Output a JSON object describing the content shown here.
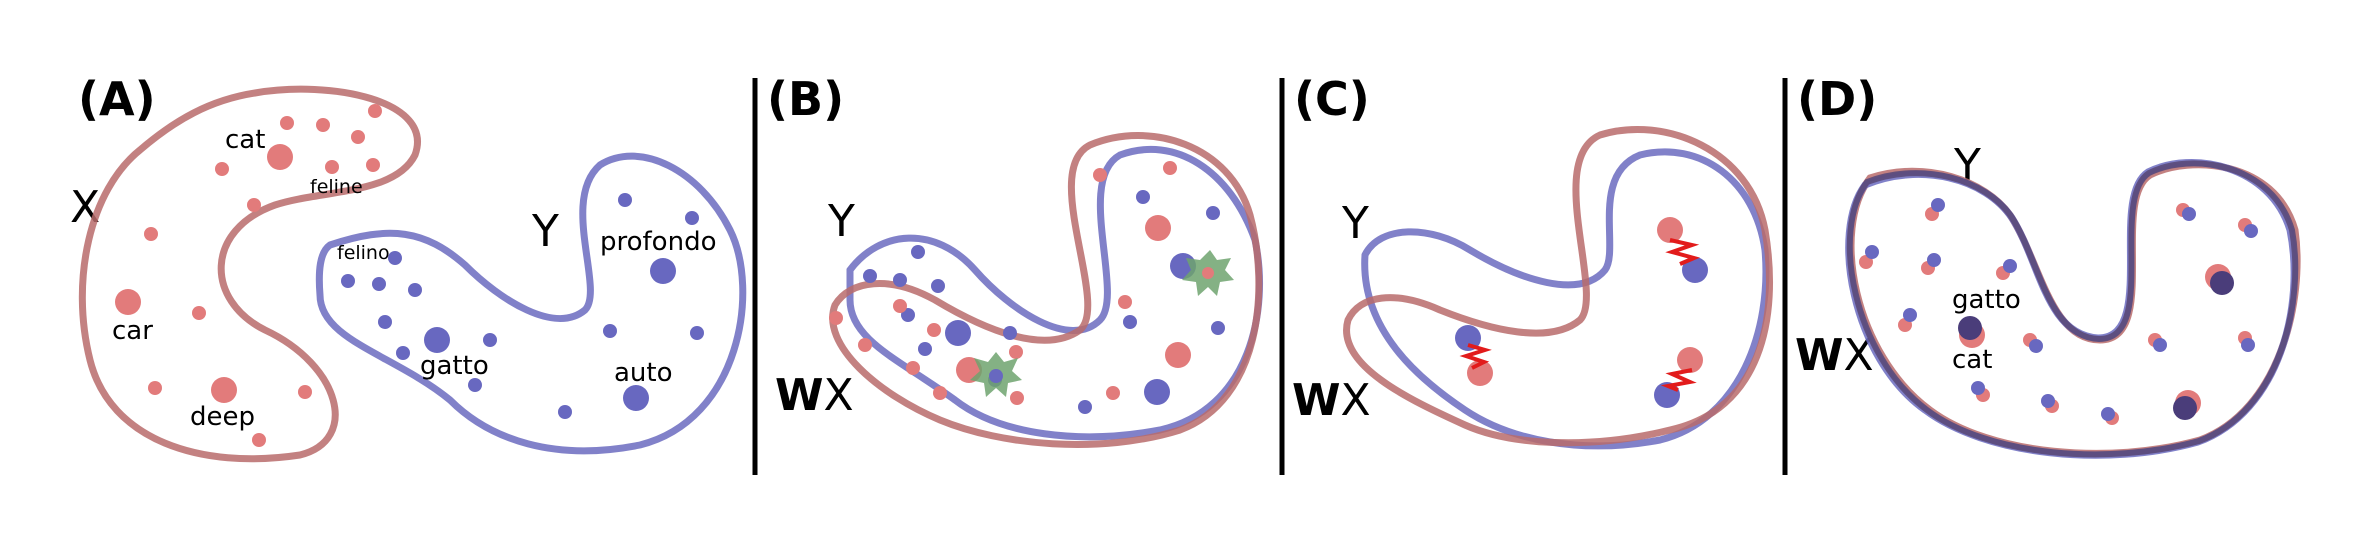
{
  "panels": {
    "a": {
      "label": "(A)",
      "x_label": "X",
      "y_label": "Y",
      "words_x": {
        "cat": "cat",
        "feline": "feline",
        "car": "car",
        "deep": "deep"
      },
      "words_y": {
        "felino": "felino",
        "gatto": "gatto",
        "profondo": "profondo",
        "auto": "auto"
      }
    },
    "b": {
      "label": "(B)",
      "y_label": "Y",
      "wx_w": "W",
      "wx_x": "X"
    },
    "c": {
      "label": "(C)",
      "y_label": "Y",
      "wx_w": "W",
      "wx_x": "X"
    },
    "d": {
      "label": "(D)",
      "y_label": "Y",
      "wx_w": "W",
      "wx_x": "X",
      "words": {
        "gatto": "gatto",
        "cat": "cat"
      }
    }
  },
  "colors": {
    "source_space": "#b96b6b",
    "target_space": "#6b6bc0",
    "aligned_space": "#5a4a7a",
    "source_points": "#e27b7b",
    "target_points": "#6868c0",
    "anchor_marker": "#6fa36f",
    "mismatch_marker": "#e21b1b"
  }
}
